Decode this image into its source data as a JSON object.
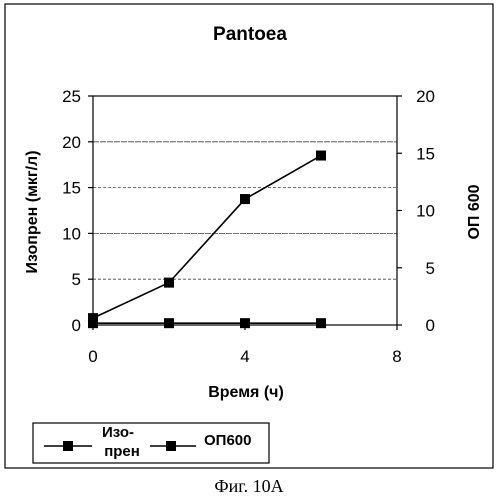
{
  "chart_data": {
    "type": "line",
    "title": "Pantoea",
    "xlabel": "Время (ч)",
    "ylabel_left": "Изопрен (мкг/л)",
    "ylabel_right": "ОП 600",
    "x_ticks": [
      "0",
      "4",
      "8"
    ],
    "x_tick_values": [
      0,
      4,
      8
    ],
    "xlim": [
      0,
      8
    ],
    "y_left_ticks": [
      "0",
      "5",
      "10",
      "15",
      "20",
      "25"
    ],
    "y_left_tick_values": [
      0,
      5,
      10,
      15,
      20,
      25
    ],
    "ylim_left": [
      0,
      25
    ],
    "y_right_ticks": [
      "0",
      "5",
      "10",
      "15",
      "20"
    ],
    "y_right_tick_values": [
      0,
      5,
      10,
      15,
      20
    ],
    "ylim_right": [
      0,
      20
    ],
    "grid": "horizontal",
    "legend_position": "bottom",
    "series": [
      {
        "name_lines": [
          "Изо-",
          "прен"
        ],
        "axis": "left",
        "marker": "square",
        "color": "#000000",
        "x": [
          0,
          2,
          4,
          6
        ],
        "y": [
          0.2,
          0.2,
          0.2,
          0.2
        ]
      },
      {
        "name": "ОП600",
        "axis": "right",
        "marker": "square",
        "color": "#000000",
        "x": [
          0,
          2,
          4,
          6
        ],
        "y": [
          0.6,
          3.7,
          11.0,
          14.8
        ]
      }
    ]
  },
  "caption": "Фиг. 10A"
}
